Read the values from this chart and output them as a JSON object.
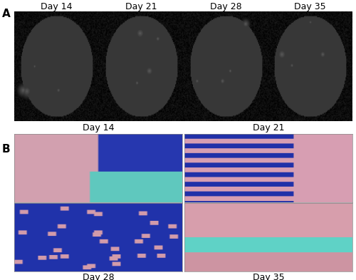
{
  "panel_A_labels": [
    "Day 14",
    "Day 21",
    "Day 28",
    "Day 35"
  ],
  "panel_B_labels_top": [
    "Day 14",
    "Day 21"
  ],
  "panel_B_labels_bottom": [
    "Day 28",
    "Day 35"
  ],
  "label_A": "A",
  "label_B": "B",
  "bg_color": "#ffffff",
  "font_size_labels": 9,
  "font_size_panel": 11,
  "figure_width": 5.0,
  "figure_height": 3.93
}
